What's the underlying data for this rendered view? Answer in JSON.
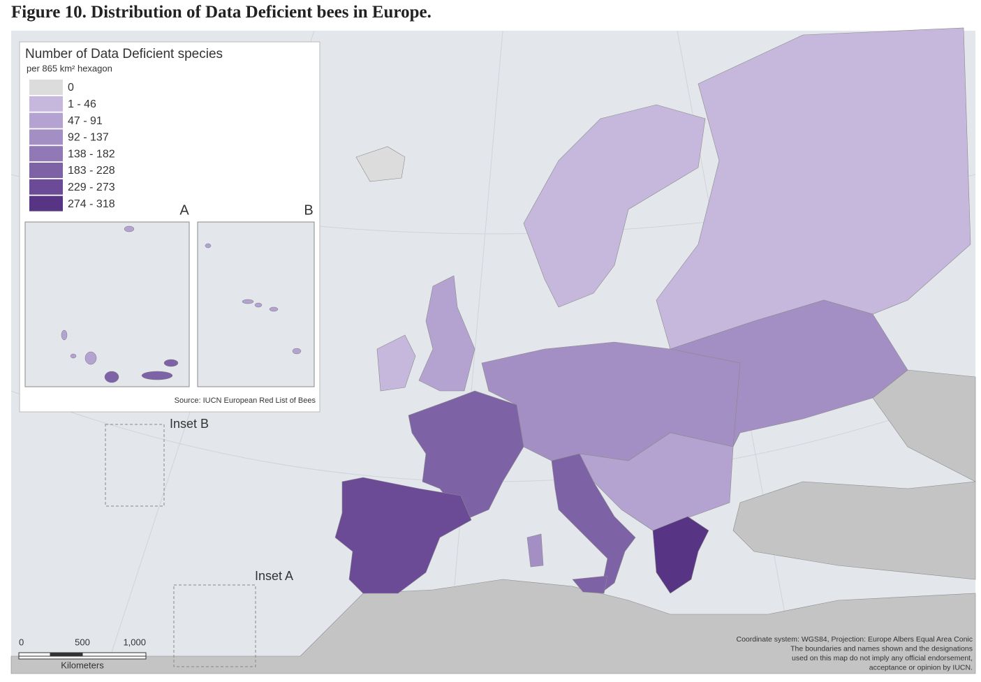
{
  "header": {
    "title": "Figure 10. Distribution of Data Deficient bees in Europe."
  },
  "legend": {
    "title": "Number of Data Deficient species",
    "subtitle": "per 865 km² hexagon",
    "classes": [
      {
        "label": "0",
        "color": "#dcdcdc"
      },
      {
        "label": "1 - 46",
        "color": "#c6b8dc"
      },
      {
        "label": "47 - 91",
        "color": "#b4a3d0"
      },
      {
        "label": "92 - 137",
        "color": "#a38fc4"
      },
      {
        "label": "138 - 182",
        "color": "#9179b6"
      },
      {
        "label": "183 - 228",
        "color": "#7e62a6"
      },
      {
        "label": "229 - 273",
        "color": "#6b4b96"
      },
      {
        "label": "274 - 318",
        "color": "#583584"
      }
    ],
    "inset_a": "A",
    "inset_b": "B",
    "source": "Source: IUCN European Red List of Bees"
  },
  "map": {
    "inset_b_label": "Inset B",
    "inset_a_label": "Inset A",
    "scale": {
      "ticks": [
        "0",
        "500",
        "1,000"
      ],
      "unit": "Kilometers"
    },
    "note": [
      "Coordinate system: WGS84, Projection: Europe Albers Equal Area Conic",
      "The boundaries and names shown and the designations",
      "used on this map do not imply any official endorsement,",
      "acceptance or opinion by IUCN."
    ]
  }
}
